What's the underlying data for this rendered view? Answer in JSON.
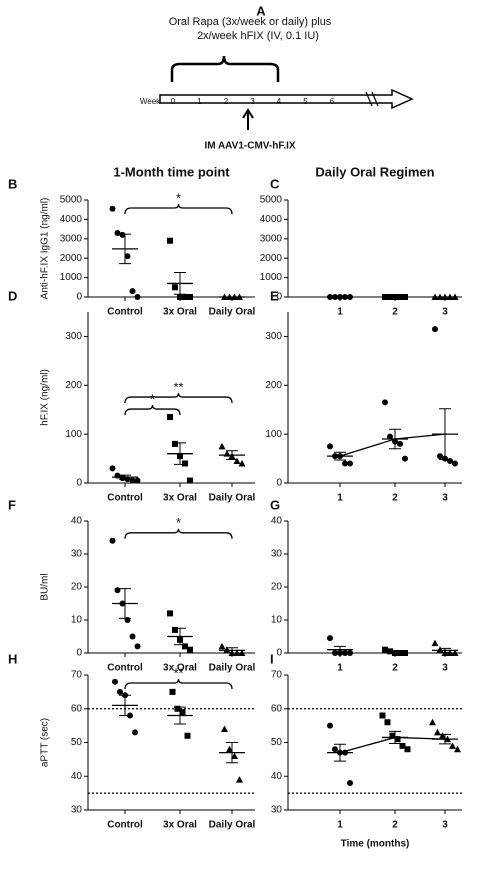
{
  "panel_a": {
    "label": "A",
    "line1": "Oral Rapa (3x/week or daily) plus",
    "line2": "2x/week hFIX (IV, 0.1 IU)",
    "week_label": "Week",
    "weeks": [
      0,
      1,
      2,
      3,
      4,
      5,
      6
    ],
    "injection": "IM AAV1-CMV-hF.IX"
  },
  "chart_data": [
    {
      "type": "dot",
      "panel": "B",
      "title": "1-Month time point",
      "y_label": "Anti-hF.IX IgG1 (ng/ml)",
      "categories": [
        "Control",
        "3x Oral",
        "Daily Oral"
      ],
      "color": "#000000",
      "groups": [
        {
          "marker": "circle",
          "points": [
            4550,
            3300,
            3200,
            2100,
            300,
            0
          ],
          "mean": 2480,
          "sem": 760
        },
        {
          "marker": "square",
          "points": [
            2900,
            500,
            0,
            0,
            0
          ],
          "mean": 700,
          "sem": 560
        },
        {
          "marker": "triangle",
          "points": [
            0,
            0,
            0,
            0
          ],
          "mean": 0,
          "sem": 0
        }
      ],
      "ylim": [
        0,
        5000
      ],
      "yticks": [
        0,
        1000,
        2000,
        3000,
        4000,
        5000
      ],
      "significance": [
        {
          "label": "*",
          "groups": [
            0,
            2
          ]
        }
      ]
    },
    {
      "type": "dot",
      "panel": "C",
      "title": "Daily Oral Regimen",
      "categories": [
        "1",
        "2",
        "3"
      ],
      "color": "#000000",
      "groups": [
        {
          "marker": "circle",
          "points": [
            0,
            0,
            0,
            0,
            0
          ],
          "mean": 0,
          "sem": 0
        },
        {
          "marker": "square",
          "points": [
            0,
            0,
            0,
            0,
            0
          ],
          "mean": 0,
          "sem": 0
        },
        {
          "marker": "triangle",
          "points": [
            0,
            0,
            0,
            0,
            0
          ],
          "mean": 0,
          "sem": 0
        }
      ],
      "ylim": [
        0,
        5000
      ],
      "yticks": [
        0,
        1000,
        2000,
        3000,
        4000,
        5000
      ]
    },
    {
      "type": "dot",
      "panel": "D",
      "y_label": "hF.IX (ng/ml)",
      "categories": [
        "Control",
        "3x Oral",
        "Daily Oral"
      ],
      "color": "#000000",
      "groups": [
        {
          "marker": "circle",
          "points": [
            30,
            15,
            10,
            8,
            5,
            5
          ],
          "mean": 12,
          "sem": 4
        },
        {
          "marker": "square",
          "points": [
            135,
            80,
            55,
            40,
            5
          ],
          "mean": 60,
          "sem": 22
        },
        {
          "marker": "triangle",
          "points": [
            75,
            60,
            55,
            45,
            40
          ],
          "mean": 57,
          "sem": 9
        }
      ],
      "ylim": [
        0,
        350
      ],
      "yticks": [
        0,
        100,
        200,
        300
      ],
      "significance": [
        {
          "label": "*",
          "groups": [
            0,
            1
          ]
        },
        {
          "label": "**",
          "groups": [
            0,
            2
          ]
        }
      ]
    },
    {
      "type": "dot",
      "panel": "E",
      "categories": [
        "1",
        "2",
        "3"
      ],
      "color": "#000000",
      "connect_means": true,
      "groups": [
        {
          "marker": "circle",
          "points": [
            75,
            55,
            55,
            40,
            40
          ],
          "mean": 55,
          "sem": 8
        },
        {
          "marker": "circle",
          "points": [
            165,
            95,
            85,
            80,
            50
          ],
          "mean": 90,
          "sem": 20
        },
        {
          "marker": "circle",
          "points": [
            315,
            55,
            50,
            45,
            40
          ],
          "mean": 100,
          "sem": 52
        }
      ],
      "ylim": [
        0,
        350
      ],
      "yticks": [
        0,
        100,
        200,
        300
      ]
    },
    {
      "type": "dot",
      "panel": "F",
      "y_label": "BU/ml",
      "categories": [
        "Control",
        "3x Oral",
        "Daily Oral"
      ],
      "color": "#000000",
      "groups": [
        {
          "marker": "circle",
          "points": [
            34,
            19,
            15,
            10,
            5,
            2
          ],
          "mean": 15,
          "sem": 4.5
        },
        {
          "marker": "square",
          "points": [
            12,
            7,
            4,
            2,
            1
          ],
          "mean": 5,
          "sem": 2.5
        },
        {
          "marker": "triangle",
          "points": [
            2,
            1,
            0,
            0,
            0
          ],
          "mean": 0.8,
          "sem": 0.8
        }
      ],
      "ylim": [
        0,
        40
      ],
      "yticks": [
        0,
        10,
        20,
        30,
        40
      ],
      "significance": [
        {
          "label": "*",
          "groups": [
            0,
            2
          ]
        }
      ]
    },
    {
      "type": "dot",
      "panel": "G",
      "categories": [
        "1",
        "2",
        "3"
      ],
      "color": "#000000",
      "groups": [
        {
          "marker": "circle",
          "points": [
            4.5,
            0,
            0,
            0,
            0
          ],
          "mean": 1,
          "sem": 1
        },
        {
          "marker": "square",
          "points": [
            1,
            0.5,
            0,
            0,
            0
          ],
          "mean": 0.3,
          "sem": 0.3
        },
        {
          "marker": "triangle",
          "points": [
            3,
            1,
            0,
            0,
            0
          ],
          "mean": 0.8,
          "sem": 0.6
        }
      ],
      "ylim": [
        0,
        40
      ],
      "yticks": [
        0,
        10,
        20,
        30,
        40
      ]
    },
    {
      "type": "dot",
      "panel": "H",
      "y_label": "aPTT (sec)",
      "categories": [
        "Control",
        "3x Oral",
        "Daily Oral"
      ],
      "color": "#000000",
      "groups": [
        {
          "marker": "circle",
          "points": [
            68,
            65,
            64,
            58,
            53
          ],
          "mean": 61,
          "sem": 3
        },
        {
          "marker": "square",
          "points": [
            65,
            60,
            59,
            52
          ],
          "mean": 58,
          "sem": 2.5
        },
        {
          "marker": "triangle",
          "points": [
            54,
            48,
            46,
            39
          ],
          "mean": 47,
          "sem": 3
        }
      ],
      "ylim": [
        30,
        70
      ],
      "yticks": [
        30,
        40,
        50,
        60,
        70
      ],
      "reference_lines": [
        60,
        35
      ],
      "significance": [
        {
          "label": "**",
          "groups": [
            0,
            2
          ]
        }
      ]
    },
    {
      "type": "dot",
      "panel": "I",
      "x_label": "Time (months)",
      "categories": [
        "1",
        "2",
        "3"
      ],
      "color": "#000000",
      "connect_means": true,
      "groups": [
        {
          "marker": "circle",
          "points": [
            55,
            48,
            47,
            47,
            38
          ],
          "mean": 47,
          "sem": 2.5
        },
        {
          "marker": "square",
          "points": [
            58,
            56,
            52,
            51,
            49,
            48
          ],
          "mean": 51.5,
          "sem": 1.8
        },
        {
          "marker": "triangle",
          "points": [
            56,
            53,
            52,
            51,
            49,
            48
          ],
          "mean": 51,
          "sem": 1.4
        }
      ],
      "ylim": [
        30,
        70
      ],
      "yticks": [
        30,
        40,
        50,
        60,
        70
      ],
      "reference_lines": [
        60,
        35
      ]
    }
  ]
}
